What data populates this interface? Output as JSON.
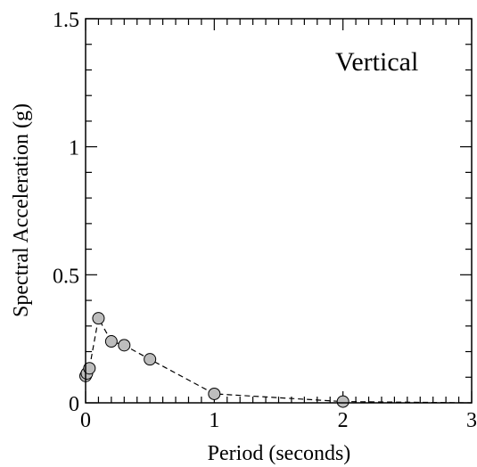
{
  "chart_data": {
    "type": "line",
    "title": "",
    "annotation": "Vertical",
    "xlabel": "Period (seconds)",
    "ylabel": "Spectral Acceleration (g)",
    "xlim": [
      0,
      3
    ],
    "ylim": [
      0,
      1.5
    ],
    "xticks": [
      0,
      1,
      2,
      3
    ],
    "xtick_labels": [
      "0",
      "1",
      "2",
      "3"
    ],
    "yticks": [
      0,
      0.5,
      1,
      1.5
    ],
    "ytick_labels": [
      "0",
      "0.5",
      "1",
      "1.5"
    ],
    "grid": false,
    "series": [
      {
        "line_style": "dashed",
        "marker": "circle",
        "marker_fill": "#bdbdbd",
        "x": [
          0.0,
          0.01,
          0.03,
          0.1,
          0.2,
          0.3,
          0.5,
          1.0,
          2.0,
          3.0
        ],
        "y": [
          0.105,
          0.115,
          0.135,
          0.33,
          0.24,
          0.225,
          0.17,
          0.035,
          0.005,
          0.0
        ],
        "markers_shown": [
          true,
          true,
          true,
          true,
          true,
          true,
          true,
          true,
          true,
          false
        ]
      }
    ]
  }
}
